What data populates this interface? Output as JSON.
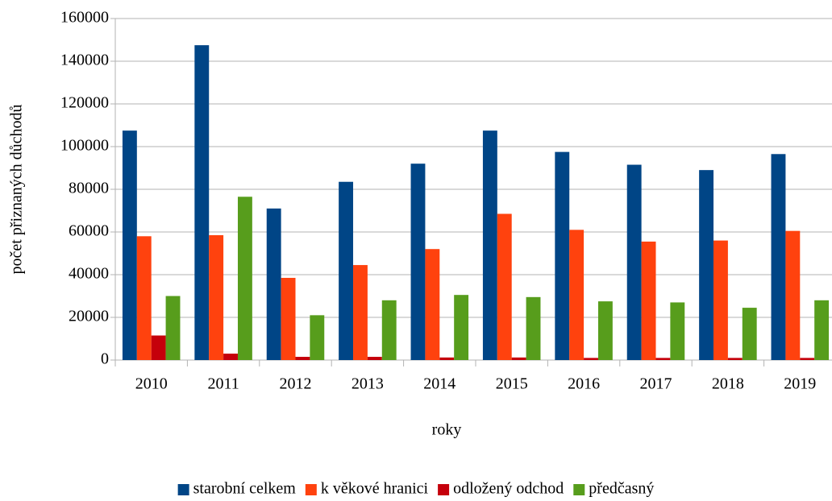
{
  "chart_data": {
    "type": "bar",
    "xlabel": "roky",
    "ylabel": "počet přiznaných důchodů",
    "categories": [
      "2010",
      "2011",
      "2012",
      "2013",
      "2014",
      "2015",
      "2016",
      "2017",
      "2018",
      "2019"
    ],
    "series": [
      {
        "name": "starobní celkem",
        "color": "#004586",
        "values": [
          107500,
          147500,
          71000,
          83500,
          92000,
          107500,
          97500,
          91500,
          89000,
          96500
        ]
      },
      {
        "name": "k věkové hranici",
        "color": "#ff420e",
        "values": [
          58000,
          58500,
          38500,
          44500,
          52000,
          68500,
          61000,
          55500,
          56000,
          60500
        ]
      },
      {
        "name": "odložený odchod",
        "color": "#c5000b",
        "values": [
          11500,
          3000,
          1500,
          1500,
          1200,
          1200,
          1000,
          1000,
          1000,
          1000
        ]
      },
      {
        "name": "předčasný",
        "color": "#579d1c",
        "values": [
          30000,
          76500,
          21000,
          28000,
          30500,
          29500,
          27500,
          27000,
          24500,
          28000
        ]
      }
    ],
    "ylim": [
      0,
      160000
    ],
    "yticks": [
      0,
      20000,
      40000,
      60000,
      80000,
      100000,
      120000,
      140000,
      160000
    ],
    "grid": true,
    "legend": "bottom"
  }
}
